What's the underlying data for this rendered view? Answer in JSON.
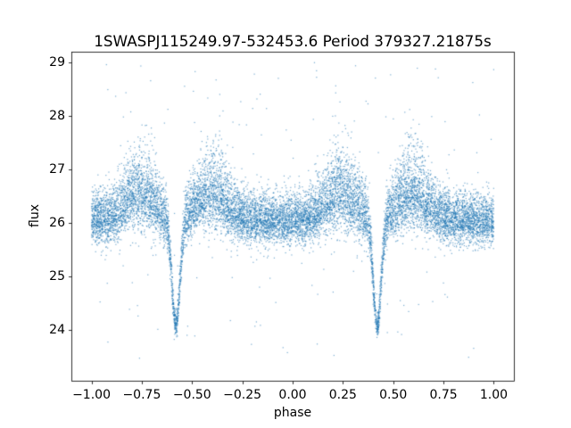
{
  "chart_data": {
    "type": "scatter",
    "title": "1SWASPJ115249.97-532453.6 Period 379327.21875s",
    "xlabel": "phase",
    "ylabel": "flux",
    "xlim": [
      -1.1,
      1.1
    ],
    "ylim": [
      23.05,
      29.2
    ],
    "xticks": [
      {
        "value": -1.0,
        "label": "−1.00"
      },
      {
        "value": -0.75,
        "label": "−0.75"
      },
      {
        "value": -0.5,
        "label": "−0.50"
      },
      {
        "value": -0.25,
        "label": "−0.25"
      },
      {
        "value": 0.0,
        "label": "0.00"
      },
      {
        "value": 0.25,
        "label": "0.25"
      },
      {
        "value": 0.5,
        "label": "0.50"
      },
      {
        "value": 0.75,
        "label": "0.75"
      },
      {
        "value": 1.0,
        "label": "1.00"
      }
    ],
    "yticks": [
      {
        "value": 24,
        "label": "24"
      },
      {
        "value": 25,
        "label": "25"
      },
      {
        "value": 26,
        "label": "26"
      },
      {
        "value": 27,
        "label": "27"
      },
      {
        "value": 28,
        "label": "28"
      },
      {
        "value": 29,
        "label": "29"
      }
    ],
    "grid": false,
    "legend": null,
    "marker_color": "#1f77b4",
    "marker_alpha": 0.6,
    "marker_size_px": 1.2,
    "summary": "Phase-folded SuperWASP light curve of an eclipsing binary plotted over two cycles (phase -1 to 1). Dense scatter band near flux 26 with brightness humps (to ~26.6) flanking each eclipse, and deep narrow eclipse minima reaching flux ~24 at phase -0.58 and +0.42; sparse outliers span flux ~23.4 to ~29.",
    "generator": {
      "seed": 20240612,
      "n_points": 14000,
      "phase_min": -1.0,
      "phase_max": 1.0,
      "baseline_flux": 26.05,
      "hump_amplitude": 0.5,
      "hump_offset": 0.18,
      "hump_sigma": 0.1,
      "eclipse_phase": 0.42,
      "eclipse_depth": 2.0,
      "eclipse_sigma": 0.028,
      "sigma_up_base": 0.26,
      "sigma_up_hump": 0.2,
      "sigma_down_base": 0.22,
      "sigma_down_hump": 0.1,
      "eclipse_scatter_shrink": 0.55,
      "outlier_fraction": 0.012,
      "outlier_flux_min": 23.4,
      "outlier_flux_max": 29.0
    }
  }
}
